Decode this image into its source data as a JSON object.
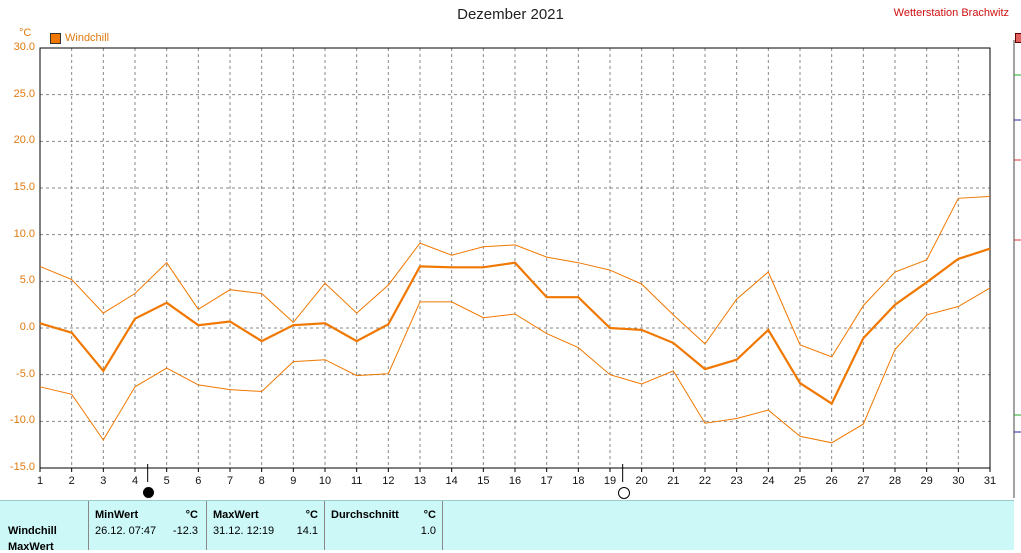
{
  "header": {
    "title": "Dezember 2021",
    "station": "Wetterstation Brachwitz",
    "unit": "°C",
    "legend_label": "Windchill"
  },
  "colors": {
    "series": "#f07800",
    "axis_text": "#e07a10",
    "grid": "#888888",
    "stats_bg": "#ccf8f8"
  },
  "chart_data": {
    "type": "line",
    "title": "Dezember 2021",
    "ylabel": "°C",
    "ylim": [
      -15,
      30
    ],
    "yticks": [
      "30.0",
      "25.0",
      "20.0",
      "15.0",
      "10.0",
      "5.0",
      "0.0",
      "-5.0",
      "-10.0",
      "-15.0"
    ],
    "x": [
      1,
      2,
      3,
      4,
      5,
      6,
      7,
      8,
      9,
      10,
      11,
      12,
      13,
      14,
      15,
      16,
      17,
      18,
      19,
      20,
      21,
      22,
      23,
      24,
      25,
      26,
      27,
      28,
      29,
      30,
      31
    ],
    "series": [
      {
        "name": "Windchill",
        "role": "avg",
        "values": [
          0.5,
          -0.5,
          -4.6,
          1.0,
          2.7,
          0.3,
          0.7,
          -1.4,
          0.3,
          0.5,
          -1.4,
          0.4,
          6.6,
          6.5,
          6.5,
          7.0,
          3.3,
          3.3,
          0.0,
          -0.2,
          -1.6,
          -4.4,
          -3.4,
          -0.2,
          -5.9,
          -8.1,
          -1.1,
          2.5,
          4.9,
          7.4,
          8.5
        ]
      },
      {
        "role": "max",
        "values": [
          6.6,
          5.2,
          1.6,
          3.7,
          7.0,
          2.0,
          4.1,
          3.7,
          0.6,
          4.8,
          1.6,
          4.6,
          9.1,
          7.8,
          8.7,
          8.9,
          7.6,
          7.0,
          6.2,
          4.7,
          1.4,
          -1.7,
          3.1,
          6.0,
          -1.8,
          -3.1,
          2.4,
          6.0,
          7.3,
          13.9,
          14.1
        ]
      },
      {
        "role": "min",
        "values": [
          -6.3,
          -7.1,
          -12.0,
          -6.3,
          -4.3,
          -6.1,
          -6.6,
          -6.8,
          -3.6,
          -3.4,
          -5.1,
          -4.9,
          2.8,
          2.8,
          1.1,
          1.5,
          -0.6,
          -2.1,
          -5.0,
          -6.0,
          -4.6,
          -10.2,
          -9.7,
          -8.8,
          -11.6,
          -12.3,
          -10.3,
          -2.3,
          1.4,
          2.3,
          4.3
        ]
      }
    ],
    "moon_phases": [
      {
        "day": 4,
        "phase": "new"
      },
      {
        "day": 19,
        "phase": "full"
      }
    ]
  },
  "stats": {
    "row_label": "Windchill",
    "row_label_2": "MaxWert",
    "min_header": "MinWert",
    "max_header": "MaxWert",
    "avg_header": "Durchschnitt",
    "unit_header": "°C",
    "min_time": "26.12.  07:47",
    "min_value": "-12.3",
    "max_time": "31.12.  12:19",
    "max_value": "14.1",
    "avg_value": "1.0"
  }
}
